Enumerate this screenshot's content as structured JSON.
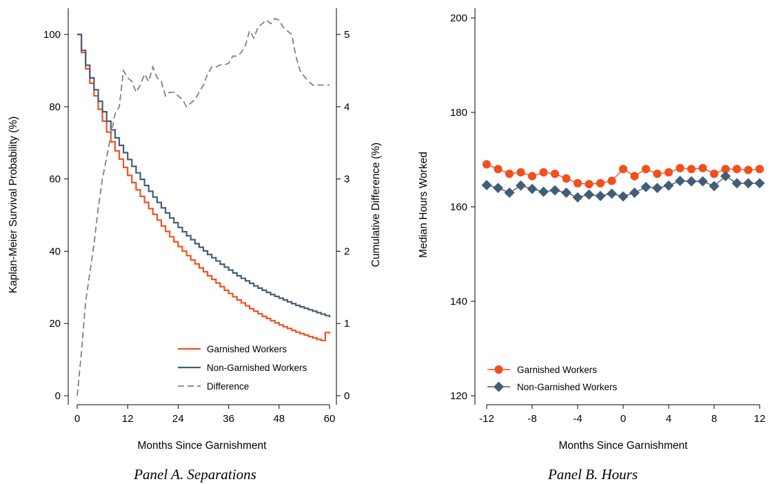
{
  "colors": {
    "garnished": "#f1501e",
    "non_garnished": "#425e76",
    "difference": "#7f7f7f"
  },
  "chart_data": [
    {
      "type": "line",
      "panel_title": "Panel A. Separations",
      "xlabel": "Months Since Garnishment",
      "ylabel": "Kaplan-Meier Survival Probability (%)",
      "y2label": "Cumulative Difference (%)",
      "xlim": [
        0,
        60
      ],
      "ylim": [
        0,
        100
      ],
      "y2lim": [
        0,
        5
      ],
      "xticks": [
        0,
        12,
        24,
        36,
        48,
        60
      ],
      "yticks": [
        0,
        20,
        40,
        60,
        80,
        100
      ],
      "y2ticks": [
        0,
        1,
        2,
        3,
        4,
        5
      ],
      "legend": "bottom-right",
      "step": true,
      "x": [
        0,
        1,
        2,
        3,
        4,
        5,
        6,
        7,
        8,
        9,
        10,
        11,
        12,
        13,
        14,
        15,
        16,
        17,
        18,
        19,
        20,
        21,
        22,
        23,
        24,
        25,
        26,
        27,
        28,
        29,
        30,
        31,
        32,
        33,
        34,
        35,
        36,
        37,
        38,
        39,
        40,
        41,
        42,
        43,
        44,
        45,
        46,
        47,
        48,
        49,
        50,
        51,
        52,
        53,
        54,
        55,
        56,
        57,
        58,
        59,
        60
      ],
      "series": [
        {
          "name": "Garnished Workers",
          "axis": "left",
          "style": "solid",
          "color_key": "garnished",
          "values": [
            100,
            95,
            90.5,
            86.5,
            83,
            79.3,
            76,
            73,
            70.3,
            67.8,
            65.5,
            63.2,
            61,
            59,
            57,
            55.2,
            53.5,
            51.8,
            50.2,
            48.6,
            47,
            45.5,
            44,
            42.6,
            41.3,
            40,
            38.8,
            37.6,
            36.5,
            35.4,
            34.3,
            33.2,
            32.2,
            31.2,
            30.2,
            29.2,
            28.3,
            27.4,
            26.5,
            25.7,
            24.9,
            24.1,
            23.4,
            22.7,
            22,
            21.4,
            20.8,
            20.2,
            19.6,
            19.1,
            18.6,
            18.1,
            17.6,
            17.2,
            16.8,
            16.4,
            16,
            15.6,
            15.3,
            17.5,
            17.2
          ]
        },
        {
          "name": "Non-Garnished Workers",
          "axis": "left",
          "style": "solid",
          "color_key": "non_garnished",
          "values": [
            100,
            95.6,
            91.5,
            88,
            84.7,
            81.5,
            78.6,
            76,
            73.6,
            71.4,
            69.3,
            67.3,
            65.4,
            63.5,
            61.7,
            59.9,
            58.2,
            56.6,
            55,
            53.5,
            52,
            50.6,
            49.2,
            47.9,
            46.6,
            45.4,
            44.3,
            43.2,
            42.1,
            41.1,
            40.1,
            39.1,
            38.2,
            37.3,
            36.4,
            35.6,
            34.8,
            34,
            33.2,
            32.5,
            31.8,
            31.1,
            30.4,
            29.8,
            29.2,
            28.6,
            28,
            27.5,
            27,
            26.5,
            26,
            25.5,
            25,
            24.6,
            24.2,
            23.8,
            23.4,
            23,
            22.6,
            22.2,
            21.7
          ]
        },
        {
          "name": "Difference",
          "axis": "right",
          "style": "dashed",
          "color_key": "difference",
          "values": [
            0,
            0.6,
            1.3,
            1.7,
            2.1,
            2.6,
            3.0,
            3.3,
            3.6,
            3.9,
            4.0,
            4.5,
            4.4,
            4.35,
            4.2,
            4.3,
            4.45,
            4.35,
            4.55,
            4.4,
            4.35,
            4.15,
            4.2,
            4.2,
            4.15,
            4.1,
            4.0,
            4.05,
            4.1,
            4.2,
            4.3,
            4.45,
            4.55,
            4.55,
            4.58,
            4.58,
            4.6,
            4.7,
            4.7,
            4.75,
            4.85,
            5.05,
            4.95,
            5.1,
            5.15,
            5.2,
            5.15,
            5.22,
            5.2,
            5.1,
            5.05,
            5.0,
            4.7,
            4.5,
            4.42,
            4.35,
            4.3,
            4.3,
            4.3,
            4.3,
            4.3
          ]
        }
      ]
    },
    {
      "type": "line",
      "panel_title": "Panel B. Hours",
      "xlabel": "Months Since Garnishment",
      "ylabel": "Median Hours Worked",
      "xlim": [
        -12,
        12
      ],
      "ylim": [
        120,
        200
      ],
      "xticks": [
        -12,
        -8,
        -4,
        0,
        4,
        8,
        12
      ],
      "yticks": [
        120,
        140,
        160,
        180,
        200
      ],
      "legend": "bottom-left",
      "x": [
        -12,
        -11,
        -10,
        -9,
        -8,
        -7,
        -6,
        -5,
        -4,
        -3,
        -2,
        -1,
        0,
        1,
        2,
        3,
        4,
        5,
        6,
        7,
        8,
        9,
        10,
        11,
        12
      ],
      "series": [
        {
          "name": "Garnished Workers",
          "marker": "circle",
          "color_key": "garnished",
          "values": [
            169,
            168,
            167,
            167.3,
            166.5,
            167.3,
            167,
            166,
            165,
            164.8,
            165,
            165.5,
            168,
            166.5,
            168,
            167,
            167.3,
            168.2,
            168,
            168.2,
            167,
            168,
            168,
            167.8,
            168
          ]
        },
        {
          "name": "Non-Garnished Workers",
          "marker": "diamond",
          "color_key": "non_garnished",
          "values": [
            164.6,
            164,
            163,
            164.5,
            163.8,
            163.2,
            163.5,
            163,
            162,
            162.6,
            162.3,
            162.8,
            162.2,
            163,
            164.2,
            164,
            164.5,
            165.5,
            165.4,
            165.4,
            164.4,
            166.5,
            165,
            165,
            165
          ]
        }
      ]
    }
  ]
}
